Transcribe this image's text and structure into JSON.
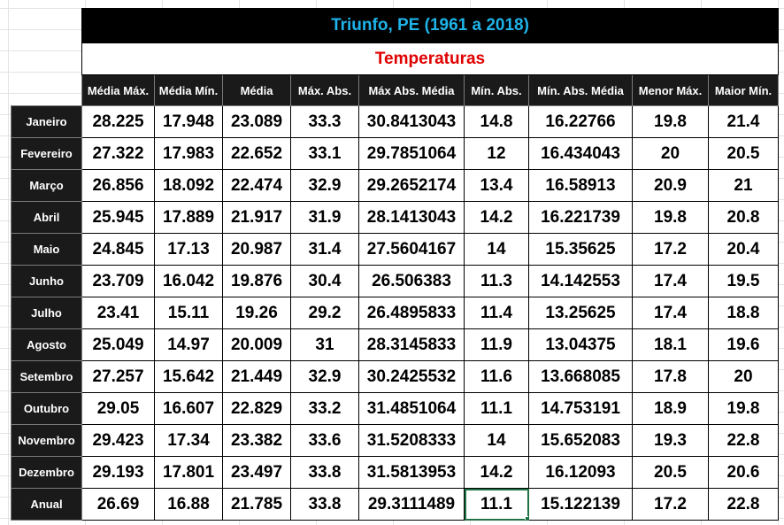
{
  "title": "Triunfo, PE (1961 a 2018)",
  "subtitle": "Temperaturas",
  "colors": {
    "title_text": "#1fb3e8",
    "subtitle_text": "#e00000",
    "header_bg": "#1a1a1a",
    "selection": "#217346"
  },
  "headers": [
    "Média Máx.",
    "Média Mín.",
    "Média",
    "Máx. Abs.",
    "Máx Abs. Média",
    "Mín. Abs.",
    "Mín. Abs. Média",
    "Menor Máx.",
    "Maior Mín."
  ],
  "rows": [
    {
      "label": "Janeiro",
      "values": [
        "28.225",
        "17.948",
        "23.089",
        "33.3",
        "30.8413043",
        "14.8",
        "16.22766",
        "19.8",
        "21.4"
      ]
    },
    {
      "label": "Fevereiro",
      "values": [
        "27.322",
        "17.983",
        "22.652",
        "33.1",
        "29.7851064",
        "12",
        "16.434043",
        "20",
        "20.5"
      ]
    },
    {
      "label": "Março",
      "values": [
        "26.856",
        "18.092",
        "22.474",
        "32.9",
        "29.2652174",
        "13.4",
        "16.58913",
        "20.9",
        "21"
      ]
    },
    {
      "label": "Abril",
      "values": [
        "25.945",
        "17.889",
        "21.917",
        "31.9",
        "28.1413043",
        "14.2",
        "16.221739",
        "19.8",
        "20.8"
      ]
    },
    {
      "label": "Maio",
      "values": [
        "24.845",
        "17.13",
        "20.987",
        "31.4",
        "27.5604167",
        "14",
        "15.35625",
        "17.2",
        "20.4"
      ]
    },
    {
      "label": "Junho",
      "values": [
        "23.709",
        "16.042",
        "19.876",
        "30.4",
        "26.506383",
        "11.3",
        "14.142553",
        "17.4",
        "19.5"
      ]
    },
    {
      "label": "Julho",
      "values": [
        "23.41",
        "15.11",
        "19.26",
        "29.2",
        "26.4895833",
        "11.4",
        "13.25625",
        "17.4",
        "18.8"
      ]
    },
    {
      "label": "Agosto",
      "values": [
        "25.049",
        "14.97",
        "20.009",
        "31",
        "28.3145833",
        "11.9",
        "13.04375",
        "18.1",
        "19.6"
      ]
    },
    {
      "label": "Setembro",
      "values": [
        "27.257",
        "15.642",
        "21.449",
        "32.9",
        "30.2425532",
        "11.6",
        "13.668085",
        "17.8",
        "20"
      ]
    },
    {
      "label": "Outubro",
      "values": [
        "29.05",
        "16.607",
        "22.829",
        "33.2",
        "31.4851064",
        "11.1",
        "14.753191",
        "18.9",
        "19.8"
      ]
    },
    {
      "label": "Novembro",
      "values": [
        "29.423",
        "17.34",
        "23.382",
        "33.6",
        "31.5208333",
        "14",
        "15.652083",
        "19.3",
        "22.8"
      ]
    },
    {
      "label": "Dezembro",
      "values": [
        "29.193",
        "17.801",
        "23.497",
        "33.8",
        "31.5813953",
        "14.2",
        "16.12093",
        "20.5",
        "20.6"
      ]
    },
    {
      "label": "Anual",
      "values": [
        "26.69",
        "16.88",
        "21.785",
        "33.8",
        "29.3111489",
        "11.1",
        "15.122139",
        "17.2",
        "22.8"
      ]
    }
  ],
  "selected_cell": {
    "row": 12,
    "col": 5
  }
}
